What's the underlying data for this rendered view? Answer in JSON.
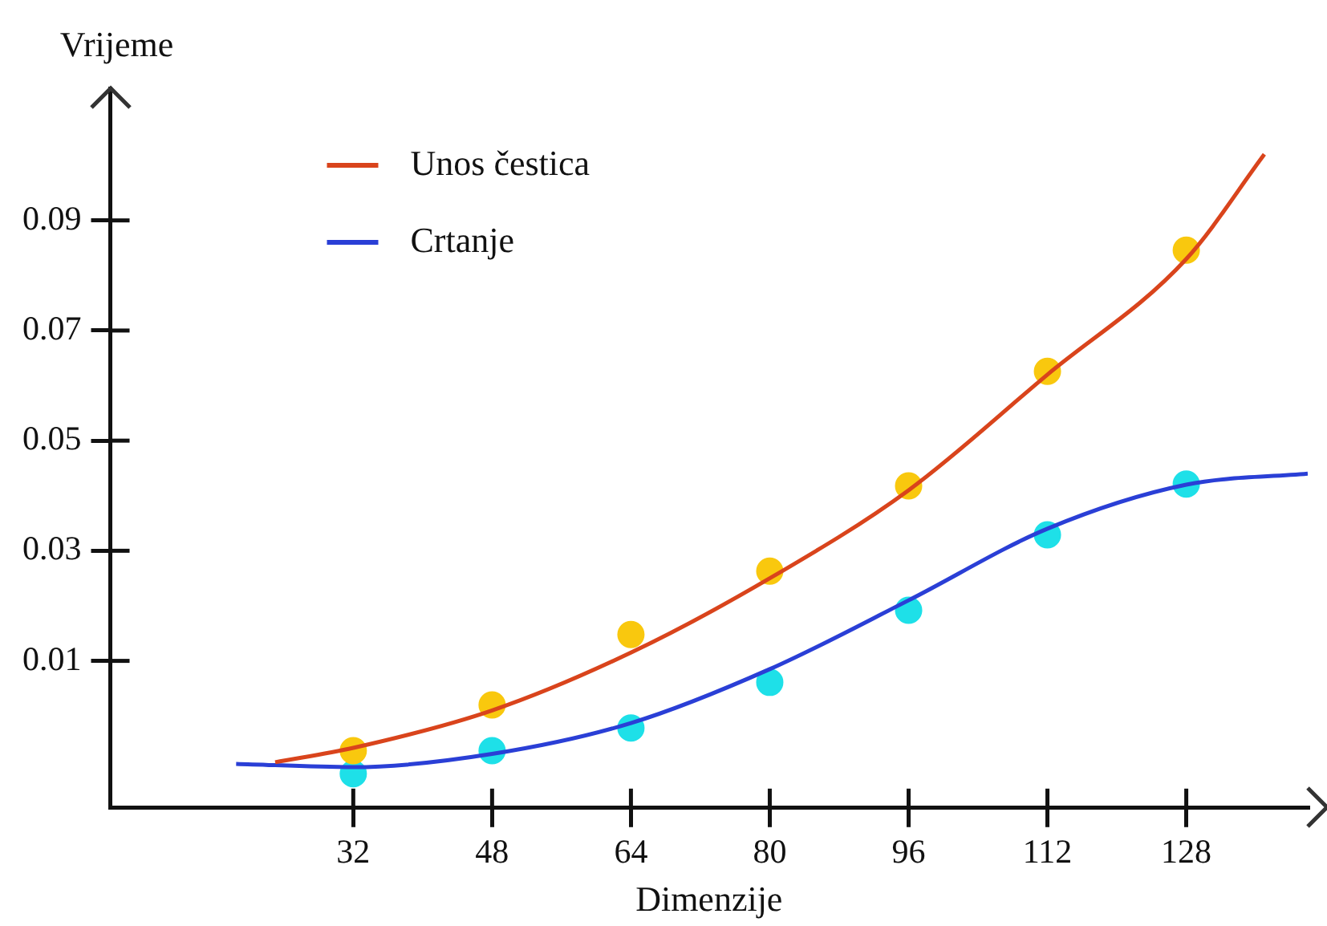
{
  "chart_data": {
    "type": "line",
    "xlabel": "Dimenzije",
    "ylabel": "Vrijeme",
    "xlim": [
      4,
      142
    ],
    "xticks": [
      32,
      48,
      64,
      80,
      96,
      112,
      128
    ],
    "ylim": [
      -0.0167,
      0.114
    ],
    "yticks": [
      0.01,
      0.03,
      0.05,
      0.07,
      0.09
    ],
    "grid": false,
    "legend": "top left",
    "series": [
      {
        "name": "Unos čestica",
        "type": "line",
        "marker": "none",
        "color": "#d9441c",
        "x": [
          23,
          32,
          48,
          64,
          80,
          96,
          112,
          128,
          137
        ],
        "values": [
          -0.0084,
          -0.0058,
          0.001,
          0.0115,
          0.025,
          0.041,
          0.062,
          0.083,
          0.102
        ]
      },
      {
        "name": "Crtanje",
        "type": "line",
        "marker": "none",
        "color": "#2a3fd6",
        "x": [
          18.5,
          32,
          48,
          64,
          80,
          96,
          112,
          128,
          142
        ],
        "values": [
          -0.0087,
          -0.0093,
          -0.0069,
          -0.0013,
          0.0085,
          0.021,
          0.034,
          0.042,
          0.044
        ]
      },
      {
        "type": "scatter",
        "marker": "circle",
        "color": "#f9c80e",
        "x": [
          32,
          48,
          64,
          80,
          96,
          112,
          128
        ],
        "values": [
          -0.0063,
          0.002,
          0.0148,
          0.0263,
          0.0418,
          0.0626,
          0.0846
        ]
      },
      {
        "type": "scatter",
        "marker": "circle",
        "color": "#1ee0e8",
        "x": [
          32,
          48,
          64,
          80,
          96,
          112,
          128
        ],
        "values": [
          -0.0105,
          -0.0063,
          -0.0022,
          0.0061,
          0.0192,
          0.0329,
          0.0421
        ]
      }
    ]
  }
}
